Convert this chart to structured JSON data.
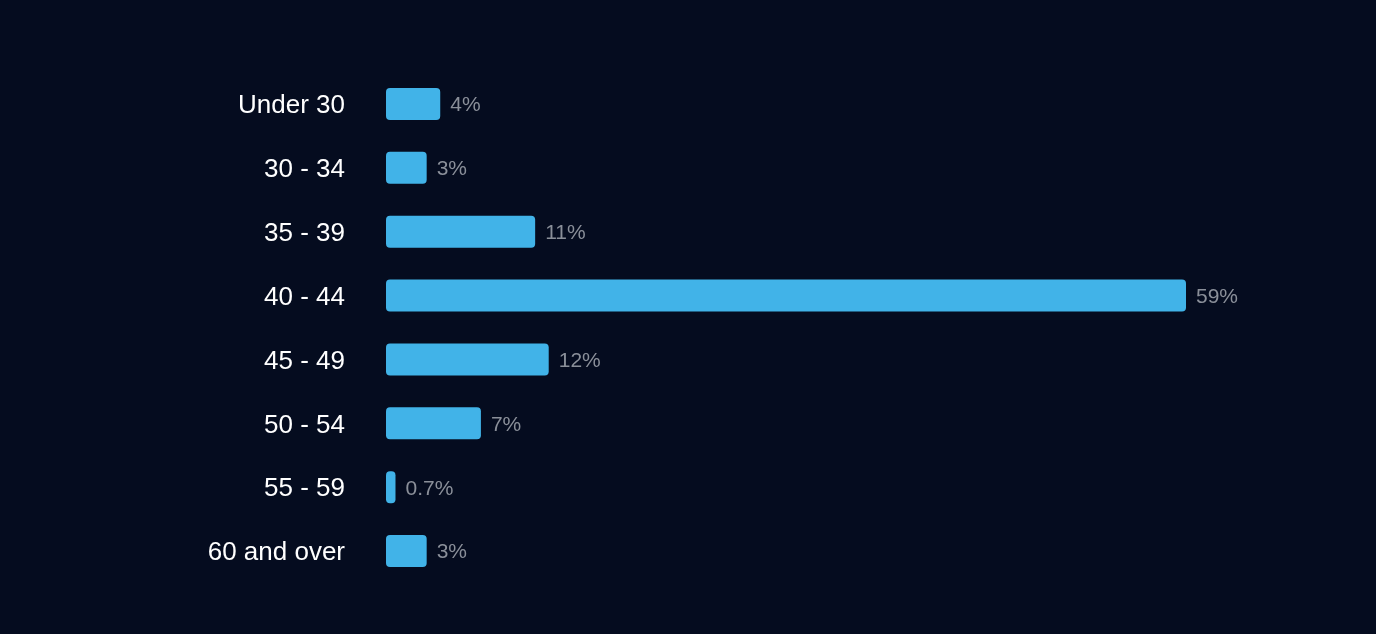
{
  "chart_data": {
    "type": "bar",
    "orientation": "horizontal",
    "categories": [
      "Under 30",
      "30 - 34",
      "35 - 39",
      "40 - 44",
      "45 - 49",
      "50 - 54",
      "55 - 59",
      "60 and over"
    ],
    "values": [
      4,
      3,
      11,
      59,
      12,
      7,
      0.7,
      3
    ],
    "value_labels": [
      "4%",
      "3%",
      "11%",
      "59%",
      "12%",
      "7%",
      "0.7%",
      "3%"
    ],
    "color": "#41b3e8"
  }
}
